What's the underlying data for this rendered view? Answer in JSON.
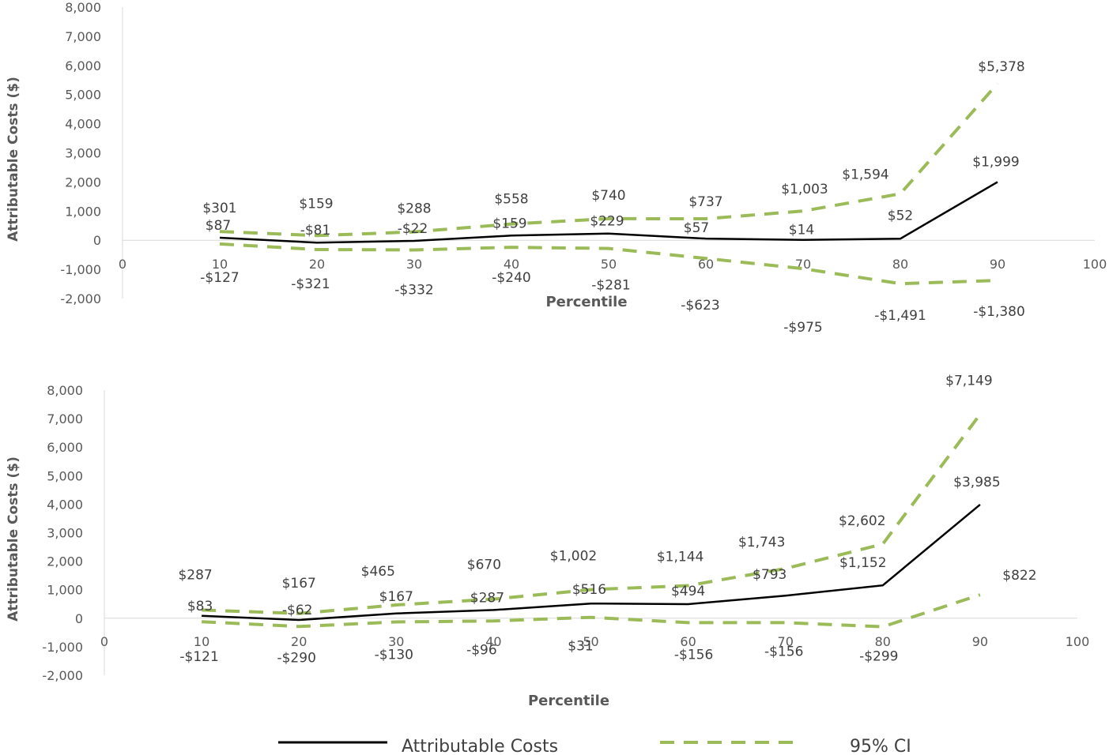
{
  "chart_data": [
    {
      "type": "line",
      "title": "",
      "xlabel": "Percentile",
      "ylabel": "Attributable Costs ($)",
      "xlim": [
        0,
        100
      ],
      "ylim": [
        -2000,
        8000
      ],
      "x_ticks": [
        "0",
        "10",
        "20",
        "30",
        "40",
        "50",
        "60",
        "70",
        "80",
        "90",
        "100"
      ],
      "y_ticks": [
        "8,000",
        "7,000",
        "6,000",
        "5,000",
        "4,000",
        "3,000",
        "2,000",
        "1,000",
        "0",
        "-1,000",
        "-2,000"
      ],
      "grid": false,
      "x": [
        10,
        20,
        30,
        40,
        50,
        60,
        70,
        80,
        90
      ],
      "series": [
        {
          "name": "Attributable Costs",
          "values": [
            87,
            -81,
            -22,
            159,
            229,
            57,
            14,
            52,
            1999
          ],
          "labels": [
            "$87",
            "-$81",
            "-$22",
            "$159",
            "$229",
            "$57",
            "$14",
            "$52",
            "$1,999"
          ]
        },
        {
          "name": "95% CI",
          "values": [
            301,
            159,
            288,
            558,
            740,
            737,
            1003,
            1594,
            5378
          ],
          "labels": [
            "$301",
            "$159",
            "$288",
            "$558",
            "$740",
            "$737",
            "$1,003",
            "$1,594",
            "$5,378"
          ]
        },
        {
          "name": "95% CI",
          "values": [
            -127,
            -321,
            -332,
            -240,
            -281,
            -623,
            -975,
            -1491,
            -1380
          ],
          "labels": [
            "-$127",
            "-$321",
            "-$332",
            "-$240",
            "-$281",
            "-$623",
            "-$975",
            "-$1,491",
            "-$1,380"
          ]
        }
      ]
    },
    {
      "type": "line",
      "title": "",
      "xlabel": "Percentile",
      "ylabel": "Attributable Costs ($)",
      "xlim": [
        0,
        100
      ],
      "ylim": [
        -2000,
        8000
      ],
      "x_ticks": [
        "0",
        "10",
        "20",
        "30",
        "40",
        "50",
        "60",
        "70",
        "80",
        "90",
        "100"
      ],
      "y_ticks": [
        "8,000",
        "7,000",
        "6,000",
        "5,000",
        "4,000",
        "3,000",
        "2,000",
        "1,000",
        "0",
        "-1,000",
        "-2,000"
      ],
      "grid": false,
      "x": [
        10,
        20,
        30,
        40,
        50,
        60,
        70,
        80,
        90
      ],
      "series": [
        {
          "name": "Attributable Costs",
          "values": [
            83,
            -62,
            167,
            287,
            516,
            494,
            793,
            1152,
            3985
          ],
          "labels": [
            "$83",
            "-$62",
            "$167",
            "$287",
            "$516",
            "$494",
            "$793",
            "$1,152",
            "$3,985"
          ]
        },
        {
          "name": "95% CI",
          "values": [
            287,
            167,
            465,
            670,
            1002,
            1144,
            1743,
            2602,
            7149
          ],
          "labels": [
            "$287",
            "$167",
            "$465",
            "$670",
            "$1,002",
            "$1,144",
            "$1,743",
            "$2,602",
            "$7,149"
          ]
        },
        {
          "name": "95% CI",
          "values": [
            -121,
            -290,
            -130,
            -96,
            31,
            -156,
            -156,
            -299,
            822
          ],
          "labels": [
            "-$121",
            "-$290",
            "-$130",
            "-$96",
            "$31",
            "-$156",
            "-$156",
            "-$299",
            "$822"
          ]
        }
      ]
    }
  ],
  "legend": {
    "position": "bottom",
    "items": [
      {
        "label": "Attributable Costs",
        "color": "#000000",
        "style": "solid"
      },
      {
        "label": "95% CI",
        "color": "#9bbb59",
        "style": "dashed"
      }
    ]
  },
  "colors": {
    "main": "#000000",
    "ci": "#9bbb59",
    "axis": "#d9d9d9",
    "text": "#404040"
  }
}
